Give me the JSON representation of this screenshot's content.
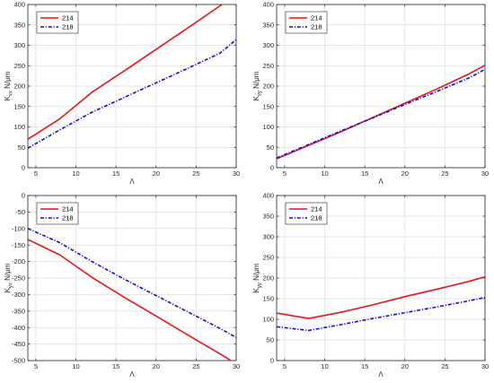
{
  "chart_data": [
    {
      "type": "line",
      "title": "",
      "xlabel": "Λ",
      "ylabel": "K_xx N/μm",
      "ylabel_main": "K",
      "ylabel_sub": "xx",
      "ylabel_unit": " N/μm",
      "xlim": [
        4,
        30
      ],
      "ylim": [
        0,
        400
      ],
      "xticks": [
        5,
        10,
        15,
        20,
        25,
        30
      ],
      "yticks": [
        0,
        50,
        100,
        150,
        200,
        250,
        300,
        350,
        400
      ],
      "grid": true,
      "legend_position": "top-left",
      "series": [
        {
          "name": "214",
          "color": "#e8141a",
          "style": "solid",
          "x": [
            4,
            8,
            12,
            16,
            20,
            24,
            28,
            30
          ],
          "y": [
            70,
            120,
            185,
            237,
            290,
            343,
            397,
            423
          ]
        },
        {
          "name": "218",
          "color": "#0d0dd9",
          "style": "dashdot",
          "x": [
            4,
            8,
            12,
            16,
            20,
            24,
            28,
            30
          ],
          "y": [
            48,
            93,
            136,
            172,
            208,
            244,
            281,
            314
          ]
        }
      ]
    },
    {
      "type": "line",
      "title": "",
      "xlabel": "Λ",
      "ylabel": "K_xy N/μm",
      "ylabel_main": "K",
      "ylabel_sub": "xy",
      "ylabel_unit": " N/μm",
      "xlim": [
        4,
        30
      ],
      "ylim": [
        0,
        400
      ],
      "xticks": [
        5,
        10,
        15,
        20,
        25,
        30
      ],
      "yticks": [
        0,
        50,
        100,
        150,
        200,
        250,
        300,
        350,
        400
      ],
      "grid": true,
      "legend_position": "top-left",
      "series": [
        {
          "name": "214",
          "color": "#e8141a",
          "style": "solid",
          "x": [
            4,
            8,
            12,
            16,
            20,
            24,
            28,
            30
          ],
          "y": [
            22,
            55,
            88,
            123,
            158,
            193,
            230,
            251
          ]
        },
        {
          "name": "218",
          "color": "#0d0dd9",
          "style": "dashdot",
          "x": [
            4,
            8,
            12,
            16,
            20,
            24,
            28,
            30
          ],
          "y": [
            24,
            57,
            90,
            122,
            155,
            187,
            220,
            241
          ]
        }
      ]
    },
    {
      "type": "line",
      "title": "",
      "xlabel": "Λ",
      "ylabel": "K_yx N/μm",
      "ylabel_main": "K",
      "ylabel_sub": "yx",
      "ylabel_unit": " N/μm",
      "xlim": [
        4,
        30
      ],
      "ylim": [
        -500,
        0
      ],
      "xticks": [
        5,
        10,
        15,
        20,
        25,
        30
      ],
      "yticks": [
        -500,
        -450,
        -400,
        -350,
        -300,
        -250,
        -200,
        -150,
        -100,
        -50,
        0
      ],
      "grid": true,
      "legend_position": "top-left",
      "series": [
        {
          "name": "214",
          "color": "#e8141a",
          "style": "solid",
          "x": [
            4,
            8,
            12,
            16,
            20,
            24,
            28,
            30
          ],
          "y": [
            -133,
            -180,
            -248,
            -308,
            -365,
            -423,
            -480,
            -510
          ]
        },
        {
          "name": "218",
          "color": "#0d0dd9",
          "style": "dashdot",
          "x": [
            4,
            8,
            12,
            16,
            20,
            24,
            28,
            30
          ],
          "y": [
            -100,
            -143,
            -200,
            -253,
            -303,
            -353,
            -403,
            -430
          ]
        }
      ]
    },
    {
      "type": "line",
      "title": "",
      "xlabel": "Λ",
      "ylabel": "K_yy N/μm",
      "ylabel_main": "K",
      "ylabel_sub": "yy",
      "ylabel_unit": " N/μm",
      "xlim": [
        4,
        30
      ],
      "ylim": [
        0,
        400
      ],
      "xticks": [
        5,
        10,
        15,
        20,
        25,
        30
      ],
      "yticks": [
        0,
        50,
        100,
        150,
        200,
        250,
        300,
        350,
        400
      ],
      "grid": true,
      "legend_position": "top-left",
      "series": [
        {
          "name": "214",
          "color": "#e8141a",
          "style": "solid",
          "x": [
            4,
            8,
            12,
            16,
            20,
            24,
            28,
            30
          ],
          "y": [
            115,
            102,
            117,
            135,
            155,
            173,
            192,
            203
          ]
        },
        {
          "name": "218",
          "color": "#0d0dd9",
          "style": "dashdot",
          "x": [
            4,
            8,
            12,
            16,
            20,
            24,
            28,
            30
          ],
          "y": [
            82,
            73,
            87,
            102,
            116,
            130,
            145,
            153
          ]
        }
      ]
    }
  ]
}
